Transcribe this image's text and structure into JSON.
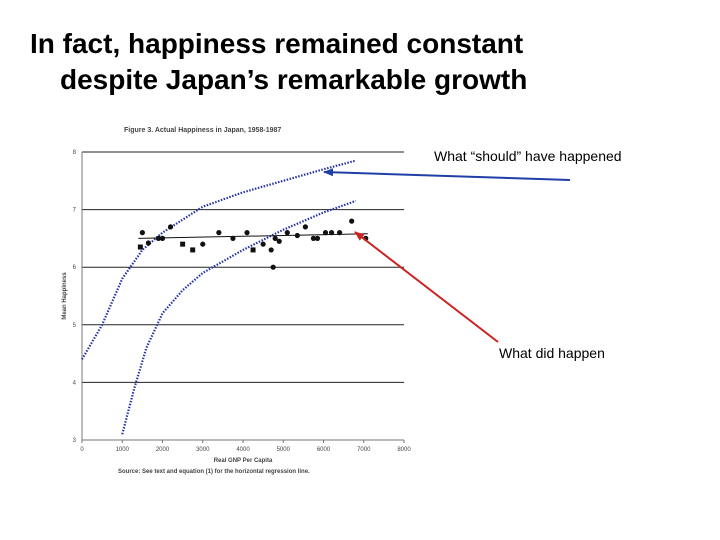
{
  "slide": {
    "title_line1": "In fact, happiness remained constant",
    "title_line2": "despite Japan’s remarkable growth"
  },
  "chart_data": {
    "type": "scatter",
    "title": "Figure 3. Actual Happiness in Japan, 1958-1987",
    "xlabel": "Real GNP Per Capita",
    "ylabel": "Mean Happiness",
    "source": "Source: See text and equation (1) for the horizontal regression line.",
    "xlim": [
      0,
      8000
    ],
    "ylim": [
      3,
      8
    ],
    "xticks": [
      "0",
      "1000",
      "2000",
      "3000",
      "4000",
      "5000",
      "6000",
      "7000",
      "8000"
    ],
    "yticks": [
      "3",
      "4",
      "5",
      "6",
      "7",
      "8"
    ],
    "points": [
      {
        "x": 1450,
        "y": 6.35,
        "marker": "square"
      },
      {
        "x": 1500,
        "y": 6.6,
        "marker": "circle"
      },
      {
        "x": 1650,
        "y": 6.42,
        "marker": "circle"
      },
      {
        "x": 1900,
        "y": 6.5,
        "marker": "circle"
      },
      {
        "x": 2000,
        "y": 6.5,
        "marker": "circle"
      },
      {
        "x": 2200,
        "y": 6.7,
        "marker": "circle"
      },
      {
        "x": 2500,
        "y": 6.4,
        "marker": "square"
      },
      {
        "x": 2750,
        "y": 6.3,
        "marker": "square"
      },
      {
        "x": 3000,
        "y": 6.4,
        "marker": "circle"
      },
      {
        "x": 3400,
        "y": 6.6,
        "marker": "circle"
      },
      {
        "x": 3750,
        "y": 6.5,
        "marker": "circle"
      },
      {
        "x": 4100,
        "y": 6.6,
        "marker": "circle"
      },
      {
        "x": 4250,
        "y": 6.3,
        "marker": "square"
      },
      {
        "x": 4500,
        "y": 6.4,
        "marker": "circle"
      },
      {
        "x": 4700,
        "y": 6.3,
        "marker": "circle"
      },
      {
        "x": 4750,
        "y": 6.0,
        "marker": "circle"
      },
      {
        "x": 4800,
        "y": 6.5,
        "marker": "circle"
      },
      {
        "x": 4900,
        "y": 6.45,
        "marker": "circle"
      },
      {
        "x": 5100,
        "y": 6.6,
        "marker": "circle"
      },
      {
        "x": 5350,
        "y": 6.55,
        "marker": "circle"
      },
      {
        "x": 5550,
        "y": 6.7,
        "marker": "circle"
      },
      {
        "x": 5750,
        "y": 6.5,
        "marker": "circle"
      },
      {
        "x": 5850,
        "y": 6.5,
        "marker": "circle"
      },
      {
        "x": 6050,
        "y": 6.6,
        "marker": "circle"
      },
      {
        "x": 6200,
        "y": 6.6,
        "marker": "circle"
      },
      {
        "x": 6400,
        "y": 6.6,
        "marker": "circle"
      },
      {
        "x": 6700,
        "y": 6.8,
        "marker": "circle"
      },
      {
        "x": 7050,
        "y": 6.5,
        "marker": "circle"
      }
    ],
    "regression_line": {
      "x": [
        1400,
        7100
      ],
      "y": [
        6.5,
        6.58
      ]
    },
    "curves": [
      {
        "name": "upper predicted",
        "x": [
          0,
          500,
          1000,
          1500,
          2000,
          3000,
          4000,
          5000,
          6000,
          6800
        ],
        "y": [
          4.4,
          5.0,
          5.8,
          6.3,
          6.6,
          7.05,
          7.3,
          7.5,
          7.7,
          7.85
        ]
      },
      {
        "name": "lower predicted",
        "x": [
          1000,
          1300,
          1600,
          2000,
          2500,
          3000,
          4000,
          5000,
          6000,
          6800
        ],
        "y": [
          3.1,
          3.9,
          4.6,
          5.2,
          5.6,
          5.9,
          6.3,
          6.65,
          6.95,
          7.15
        ]
      }
    ],
    "annotations": [
      {
        "text": "What “should” have happened",
        "target_curve": "upper predicted",
        "arrow_color": "#1f3fa6"
      },
      {
        "text": "What did happen",
        "target_curve": "regression line",
        "arrow_color": "#cc2222"
      }
    ]
  }
}
